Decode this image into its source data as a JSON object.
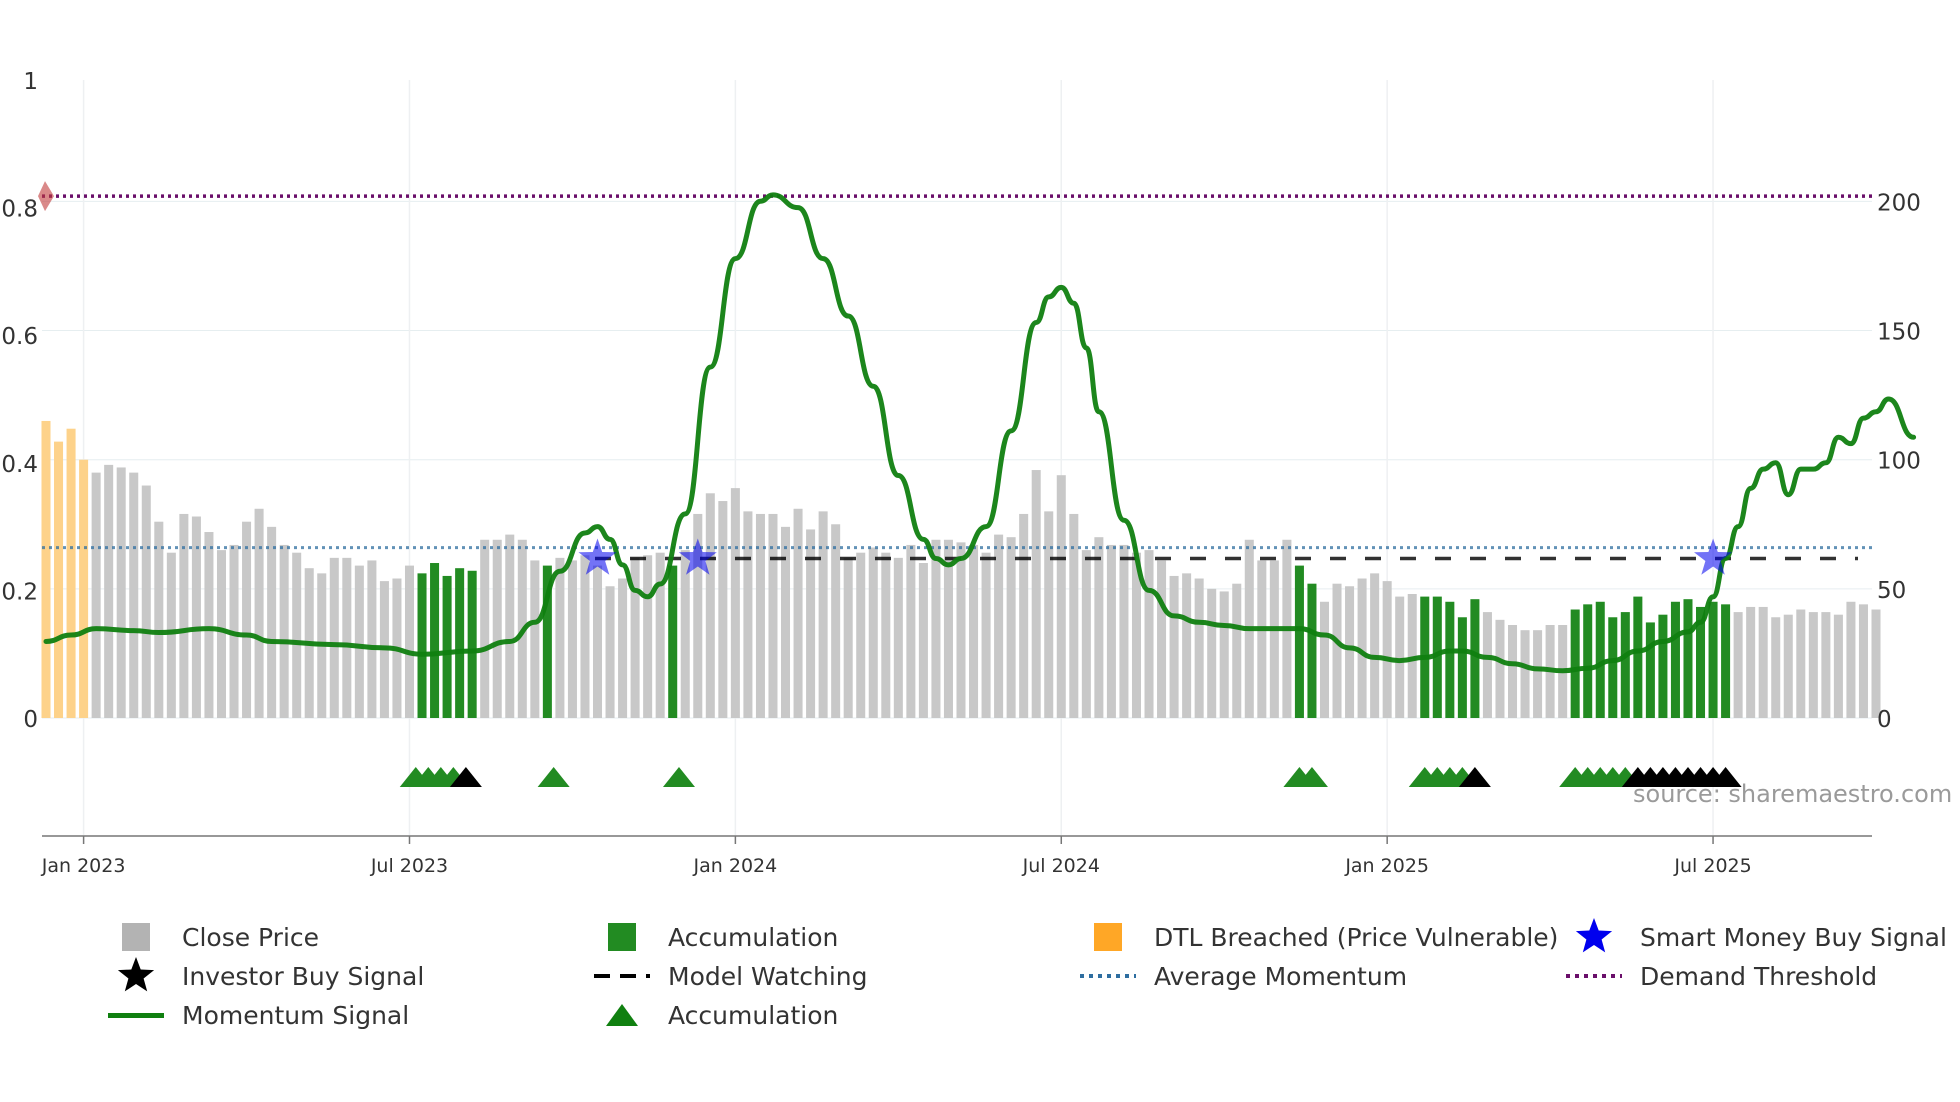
{
  "chart_data": {
    "type": "bar",
    "y_left_ticks": [
      "0",
      "0.2",
      "0.4",
      "0.6",
      "0.8",
      "1"
    ],
    "y_right_ticks": [
      "0",
      "50",
      "100",
      "150",
      "200"
    ],
    "x_ticks": [
      "Jan 2023",
      "Jul 2023",
      "Jan 2024",
      "Jul 2024",
      "Jan 2025",
      "Jul 2025"
    ],
    "left_range": [
      0,
      1
    ],
    "right_range": [
      0,
      247
    ],
    "x_range_weeks": [
      -3,
      143
    ],
    "x_tick_weeks": [
      0,
      26,
      52,
      78,
      104,
      130
    ],
    "average_momentum": 0.267,
    "model_watching": 0.25,
    "demand_threshold": 0.818,
    "close_price": [
      {
        "x": -3,
        "v": 115,
        "s": "dtl"
      },
      {
        "x": -2,
        "v": 107,
        "s": "dtl"
      },
      {
        "x": -1,
        "v": 112,
        "s": "dtl"
      },
      {
        "x": 0,
        "v": 100,
        "s": "dtl"
      },
      {
        "x": 1,
        "v": 95,
        "s": "close"
      },
      {
        "x": 2,
        "v": 98,
        "s": "close"
      },
      {
        "x": 3,
        "v": 97,
        "s": "close"
      },
      {
        "x": 4,
        "v": 95,
        "s": "close"
      },
      {
        "x": 5,
        "v": 90,
        "s": "close"
      },
      {
        "x": 6,
        "v": 76,
        "s": "close"
      },
      {
        "x": 7,
        "v": 64,
        "s": "close"
      },
      {
        "x": 8,
        "v": 79,
        "s": "close"
      },
      {
        "x": 9,
        "v": 78,
        "s": "close"
      },
      {
        "x": 10,
        "v": 72,
        "s": "close"
      },
      {
        "x": 11,
        "v": 65,
        "s": "close"
      },
      {
        "x": 12,
        "v": 67,
        "s": "close"
      },
      {
        "x": 13,
        "v": 76,
        "s": "close"
      },
      {
        "x": 14,
        "v": 81,
        "s": "close"
      },
      {
        "x": 15,
        "v": 74,
        "s": "close"
      },
      {
        "x": 16,
        "v": 67,
        "s": "close"
      },
      {
        "x": 17,
        "v": 64,
        "s": "close"
      },
      {
        "x": 18,
        "v": 58,
        "s": "close"
      },
      {
        "x": 19,
        "v": 56,
        "s": "close"
      },
      {
        "x": 20,
        "v": 62,
        "s": "close"
      },
      {
        "x": 21,
        "v": 62,
        "s": "close"
      },
      {
        "x": 22,
        "v": 59,
        "s": "close"
      },
      {
        "x": 23,
        "v": 61,
        "s": "close"
      },
      {
        "x": 24,
        "v": 53,
        "s": "close"
      },
      {
        "x": 25,
        "v": 54,
        "s": "close"
      },
      {
        "x": 26,
        "v": 59,
        "s": "close"
      },
      {
        "x": 27,
        "v": 56,
        "s": "acc"
      },
      {
        "x": 28,
        "v": 60,
        "s": "acc"
      },
      {
        "x": 29,
        "v": 55,
        "s": "acc"
      },
      {
        "x": 30,
        "v": 58,
        "s": "acc"
      },
      {
        "x": 31,
        "v": 57,
        "s": "acc"
      },
      {
        "x": 32,
        "v": 69,
        "s": "close"
      },
      {
        "x": 33,
        "v": 69,
        "s": "close"
      },
      {
        "x": 34,
        "v": 71,
        "s": "close"
      },
      {
        "x": 35,
        "v": 69,
        "s": "close"
      },
      {
        "x": 36,
        "v": 61,
        "s": "close"
      },
      {
        "x": 37,
        "v": 59,
        "s": "acc"
      },
      {
        "x": 38,
        "v": 62,
        "s": "close"
      },
      {
        "x": 39,
        "v": 61,
        "s": "close"
      },
      {
        "x": 40,
        "v": 63,
        "s": "close"
      },
      {
        "x": 41,
        "v": 59,
        "s": "close"
      },
      {
        "x": 42,
        "v": 51,
        "s": "close"
      },
      {
        "x": 43,
        "v": 54,
        "s": "close"
      },
      {
        "x": 44,
        "v": 62,
        "s": "close"
      },
      {
        "x": 45,
        "v": 63,
        "s": "close"
      },
      {
        "x": 46,
        "v": 64,
        "s": "close"
      },
      {
        "x": 47,
        "v": 59,
        "s": "acc"
      },
      {
        "x": 48,
        "v": 65,
        "s": "close"
      },
      {
        "x": 49,
        "v": 79,
        "s": "close"
      },
      {
        "x": 50,
        "v": 87,
        "s": "close"
      },
      {
        "x": 51,
        "v": 84,
        "s": "close"
      },
      {
        "x": 52,
        "v": 89,
        "s": "close"
      },
      {
        "x": 53,
        "v": 80,
        "s": "close"
      },
      {
        "x": 54,
        "v": 79,
        "s": "close"
      },
      {
        "x": 55,
        "v": 79,
        "s": "close"
      },
      {
        "x": 56,
        "v": 74,
        "s": "close"
      },
      {
        "x": 57,
        "v": 81,
        "s": "close"
      },
      {
        "x": 58,
        "v": 73,
        "s": "close"
      },
      {
        "x": 59,
        "v": 80,
        "s": "close"
      },
      {
        "x": 60,
        "v": 75,
        "s": "close"
      },
      {
        "x": 61,
        "v": 62,
        "s": "close"
      },
      {
        "x": 62,
        "v": 64,
        "s": "close"
      },
      {
        "x": 63,
        "v": 66,
        "s": "close"
      },
      {
        "x": 64,
        "v": 64,
        "s": "close"
      },
      {
        "x": 65,
        "v": 62,
        "s": "close"
      },
      {
        "x": 66,
        "v": 67,
        "s": "close"
      },
      {
        "x": 67,
        "v": 60,
        "s": "close"
      },
      {
        "x": 68,
        "v": 69,
        "s": "close"
      },
      {
        "x": 69,
        "v": 69,
        "s": "close"
      },
      {
        "x": 70,
        "v": 68,
        "s": "close"
      },
      {
        "x": 71,
        "v": 67,
        "s": "close"
      },
      {
        "x": 72,
        "v": 64,
        "s": "close"
      },
      {
        "x": 73,
        "v": 71,
        "s": "close"
      },
      {
        "x": 74,
        "v": 70,
        "s": "close"
      },
      {
        "x": 75,
        "v": 79,
        "s": "close"
      },
      {
        "x": 76,
        "v": 96,
        "s": "close"
      },
      {
        "x": 77,
        "v": 80,
        "s": "close"
      },
      {
        "x": 78,
        "v": 94,
        "s": "close"
      },
      {
        "x": 79,
        "v": 79,
        "s": "close"
      },
      {
        "x": 80,
        "v": 65,
        "s": "close"
      },
      {
        "x": 81,
        "v": 70,
        "s": "close"
      },
      {
        "x": 82,
        "v": 67,
        "s": "close"
      },
      {
        "x": 83,
        "v": 67,
        "s": "close"
      },
      {
        "x": 84,
        "v": 64,
        "s": "close"
      },
      {
        "x": 85,
        "v": 65,
        "s": "close"
      },
      {
        "x": 86,
        "v": 61,
        "s": "close"
      },
      {
        "x": 87,
        "v": 55,
        "s": "close"
      },
      {
        "x": 88,
        "v": 56,
        "s": "close"
      },
      {
        "x": 89,
        "v": 54,
        "s": "close"
      },
      {
        "x": 90,
        "v": 50,
        "s": "close"
      },
      {
        "x": 91,
        "v": 49,
        "s": "close"
      },
      {
        "x": 92,
        "v": 52,
        "s": "close"
      },
      {
        "x": 93,
        "v": 69,
        "s": "close"
      },
      {
        "x": 94,
        "v": 61,
        "s": "close"
      },
      {
        "x": 95,
        "v": 61,
        "s": "close"
      },
      {
        "x": 96,
        "v": 69,
        "s": "close"
      },
      {
        "x": 97,
        "v": 59,
        "s": "acc"
      },
      {
        "x": 98,
        "v": 52,
        "s": "acc"
      },
      {
        "x": 99,
        "v": 45,
        "s": "close"
      },
      {
        "x": 100,
        "v": 52,
        "s": "close"
      },
      {
        "x": 101,
        "v": 51,
        "s": "close"
      },
      {
        "x": 102,
        "v": 54,
        "s": "close"
      },
      {
        "x": 103,
        "v": 56,
        "s": "close"
      },
      {
        "x": 104,
        "v": 53,
        "s": "close"
      },
      {
        "x": 105,
        "v": 47,
        "s": "close"
      },
      {
        "x": 106,
        "v": 48,
        "s": "close"
      },
      {
        "x": 107,
        "v": 47,
        "s": "acc"
      },
      {
        "x": 108,
        "v": 47,
        "s": "acc"
      },
      {
        "x": 109,
        "v": 45,
        "s": "acc"
      },
      {
        "x": 110,
        "v": 39,
        "s": "acc"
      },
      {
        "x": 111,
        "v": 46,
        "s": "acc"
      },
      {
        "x": 112,
        "v": 41,
        "s": "close"
      },
      {
        "x": 113,
        "v": 38,
        "s": "close"
      },
      {
        "x": 114,
        "v": 36,
        "s": "close"
      },
      {
        "x": 115,
        "v": 34,
        "s": "close"
      },
      {
        "x": 116,
        "v": 34,
        "s": "close"
      },
      {
        "x": 117,
        "v": 36,
        "s": "close"
      },
      {
        "x": 118,
        "v": 36,
        "s": "close"
      },
      {
        "x": 119,
        "v": 42,
        "s": "acc"
      },
      {
        "x": 120,
        "v": 44,
        "s": "acc"
      },
      {
        "x": 121,
        "v": 45,
        "s": "acc"
      },
      {
        "x": 122,
        "v": 39,
        "s": "acc"
      },
      {
        "x": 123,
        "v": 41,
        "s": "acc"
      },
      {
        "x": 124,
        "v": 47,
        "s": "acc"
      },
      {
        "x": 125,
        "v": 37,
        "s": "acc"
      },
      {
        "x": 126,
        "v": 40,
        "s": "acc"
      },
      {
        "x": 127,
        "v": 45,
        "s": "acc"
      },
      {
        "x": 128,
        "v": 46,
        "s": "acc"
      },
      {
        "x": 129,
        "v": 43,
        "s": "acc"
      },
      {
        "x": 130,
        "v": 45,
        "s": "acc"
      },
      {
        "x": 131,
        "v": 44,
        "s": "acc"
      },
      {
        "x": 132,
        "v": 41,
        "s": "close"
      },
      {
        "x": 133,
        "v": 43,
        "s": "close"
      },
      {
        "x": 134,
        "v": 43,
        "s": "close"
      },
      {
        "x": 135,
        "v": 39,
        "s": "close"
      },
      {
        "x": 136,
        "v": 40,
        "s": "close"
      },
      {
        "x": 137,
        "v": 42,
        "s": "close"
      },
      {
        "x": 138,
        "v": 41,
        "s": "close"
      },
      {
        "x": 139,
        "v": 41,
        "s": "close"
      },
      {
        "x": 140,
        "v": 40,
        "s": "close"
      },
      {
        "x": 141,
        "v": 45,
        "s": "close"
      },
      {
        "x": 142,
        "v": 44,
        "s": "close"
      },
      {
        "x": 143,
        "v": 42,
        "s": "close"
      }
    ],
    "momentum": [
      [
        -3,
        0.12
      ],
      [
        -1,
        0.13
      ],
      [
        1,
        0.14
      ],
      [
        4,
        0.137
      ],
      [
        6,
        0.134
      ],
      [
        10,
        0.14
      ],
      [
        13,
        0.13
      ],
      [
        15,
        0.12
      ],
      [
        20,
        0.115
      ],
      [
        24,
        0.11
      ],
      [
        27,
        0.1
      ],
      [
        31,
        0.105
      ],
      [
        34,
        0.12
      ],
      [
        36,
        0.15
      ],
      [
        38,
        0.23
      ],
      [
        40,
        0.29
      ],
      [
        41,
        0.3
      ],
      [
        42,
        0.28
      ],
      [
        43,
        0.24
      ],
      [
        44,
        0.2
      ],
      [
        45,
        0.19
      ],
      [
        46,
        0.21
      ],
      [
        48,
        0.32
      ],
      [
        50,
        0.55
      ],
      [
        52,
        0.72
      ],
      [
        54,
        0.81
      ],
      [
        55,
        0.82
      ],
      [
        57,
        0.8
      ],
      [
        59,
        0.72
      ],
      [
        61,
        0.63
      ],
      [
        63,
        0.52
      ],
      [
        65,
        0.38
      ],
      [
        67,
        0.28
      ],
      [
        68,
        0.25
      ],
      [
        69,
        0.24
      ],
      [
        70,
        0.25
      ],
      [
        72,
        0.3
      ],
      [
        74,
        0.45
      ],
      [
        76,
        0.62
      ],
      [
        77,
        0.66
      ],
      [
        78,
        0.675
      ],
      [
        79,
        0.65
      ],
      [
        80,
        0.58
      ],
      [
        81,
        0.48
      ],
      [
        83,
        0.31
      ],
      [
        85,
        0.2
      ],
      [
        87,
        0.16
      ],
      [
        89,
        0.15
      ],
      [
        91,
        0.145
      ],
      [
        93,
        0.14
      ],
      [
        95,
        0.14
      ],
      [
        97,
        0.14
      ],
      [
        99,
        0.13
      ],
      [
        101,
        0.11
      ],
      [
        103,
        0.095
      ],
      [
        105,
        0.09
      ],
      [
        107,
        0.095
      ],
      [
        109,
        0.105
      ],
      [
        110,
        0.105
      ],
      [
        112,
        0.095
      ],
      [
        114,
        0.085
      ],
      [
        116,
        0.077
      ],
      [
        118,
        0.074
      ],
      [
        120,
        0.078
      ],
      [
        122,
        0.09
      ],
      [
        124,
        0.105
      ],
      [
        126,
        0.12
      ],
      [
        128,
        0.135
      ],
      [
        129,
        0.15
      ],
      [
        130,
        0.19
      ],
      [
        131,
        0.25
      ],
      [
        132,
        0.3
      ],
      [
        133,
        0.36
      ],
      [
        134,
        0.39
      ],
      [
        135,
        0.4
      ],
      [
        136,
        0.35
      ],
      [
        137,
        0.39
      ],
      [
        138,
        0.39
      ],
      [
        139,
        0.4
      ],
      [
        140,
        0.44
      ],
      [
        141,
        0.43
      ],
      [
        142,
        0.47
      ],
      [
        143,
        0.48
      ],
      [
        144,
        0.5
      ],
      [
        146,
        0.44
      ]
    ],
    "smart_money_buy_signal": [
      41,
      49,
      130
    ],
    "accumulation_markers": [
      26.5,
      27.5,
      28.5,
      29.5,
      37.5,
      47.5,
      97,
      98,
      107,
      108,
      109,
      110,
      119,
      120,
      121,
      122,
      123
    ],
    "investor_buy_markers": [
      30.5,
      111,
      124,
      125,
      126,
      127,
      128,
      129,
      130,
      131
    ],
    "demand_threshold_marker": {
      "x": -3,
      "y": 0.818
    },
    "colors": {
      "close": "#c8c8c8",
      "accumulation": "#228b22",
      "dtl": "#fdd28a",
      "dtl_legend": "#ffa726",
      "momentum": "#108010",
      "average_momentum": "#2e6ea0",
      "demand_threshold": "#6a0f6a",
      "smart_money": "#0000ee",
      "investor": "#000000",
      "model_watching": "#000000"
    },
    "legend": [
      {
        "label": "Close Price",
        "symbol": "sq",
        "color": "#b3b3b3"
      },
      {
        "label": "Accumulation",
        "symbol": "sq",
        "color": "#228b22"
      },
      {
        "label": "DTL Breached (Price Vulnerable)",
        "symbol": "sq",
        "color": "#ffa726"
      },
      {
        "label": "Smart Money Buy Signal",
        "symbol": "star",
        "color": "#0000ee"
      },
      {
        "label": "Investor Buy Signal",
        "symbol": "star",
        "color": "#000000"
      },
      {
        "label": "Model Watching",
        "symbol": "dash",
        "color": "#000000"
      },
      {
        "label": "Average Momentum",
        "symbol": "dot",
        "color": "#2e6ea0"
      },
      {
        "label": "Demand Threshold",
        "symbol": "dot",
        "color": "#6a0f6a"
      },
      {
        "label": "Momentum Signal",
        "symbol": "line",
        "color": "#108010"
      },
      {
        "label": "Accumulation",
        "symbol": "tri",
        "color": "#108010"
      }
    ],
    "source": "source: sharemaestro.com"
  }
}
